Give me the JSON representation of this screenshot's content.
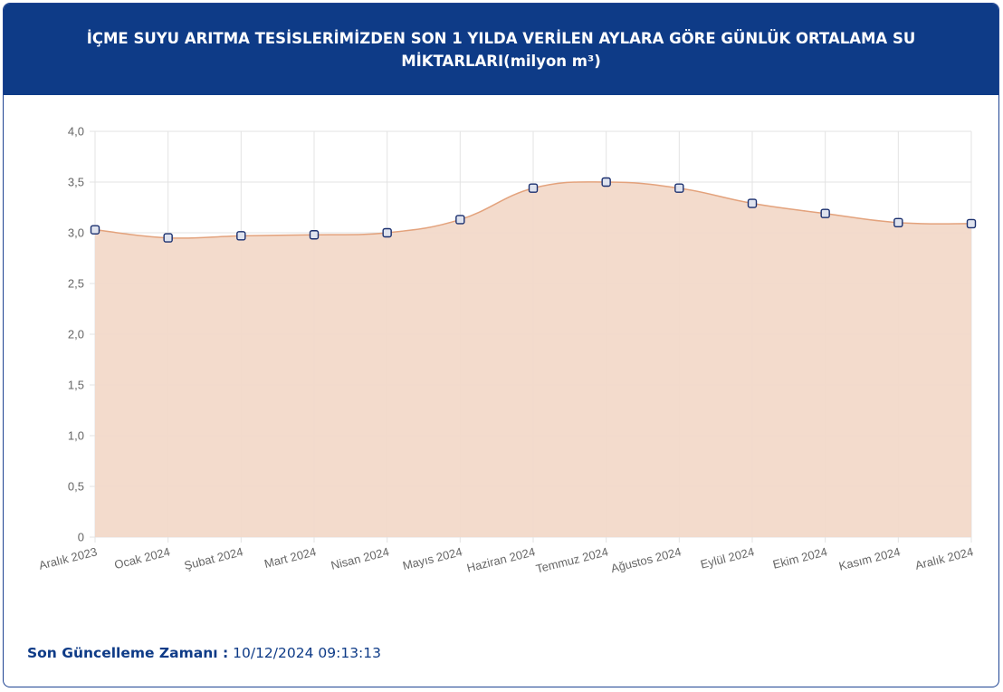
{
  "header": {
    "title": "İÇME SUYU ARITMA TESİSLERİMİZDEN SON 1 YILDA VERİLEN AYLARA GÖRE GÜNLÜK ORTALAMA SU MİKTARLARI(milyon m³)"
  },
  "chart_data": {
    "type": "area",
    "title": "İÇME SUYU ARITMA TESİSLERİMİZDEN SON 1 YILDA VERİLEN AYLARA GÖRE GÜNLÜK ORTALAMA SU MİKTARLARI(milyon m³)",
    "categories": [
      "Aralık 2023",
      "Ocak 2024",
      "Şubat 2024",
      "Mart 2024",
      "Nisan 2024",
      "Mayıs 2024",
      "Haziran 2024",
      "Temmuz 2024",
      "Ağustos 2024",
      "Eylül 2024",
      "Ekim 2024",
      "Kasım 2024",
      "Aralık 2024"
    ],
    "series": [
      {
        "values": [
          3.03,
          2.95,
          2.97,
          2.98,
          3.0,
          3.13,
          3.44,
          3.5,
          3.44,
          3.29,
          3.19,
          3.1,
          3.09
        ]
      }
    ],
    "ylim": [
      0,
      4
    ],
    "yticks": [
      "0",
      "0,5",
      "1,0",
      "1,5",
      "2,0",
      "2,5",
      "3,0",
      "3,5",
      "4,0"
    ],
    "xlabel": "",
    "ylabel": "",
    "grid": true,
    "legend": "none",
    "colors": {
      "fill": "#f2d9c9",
      "line": "#e3a27c",
      "marker_stroke": "#1a2f6e",
      "marker_fill": "#dfe3ee"
    }
  },
  "footer": {
    "label": "Son Güncelleme Zamanı :",
    "value": "10/12/2024 09:13:13"
  }
}
